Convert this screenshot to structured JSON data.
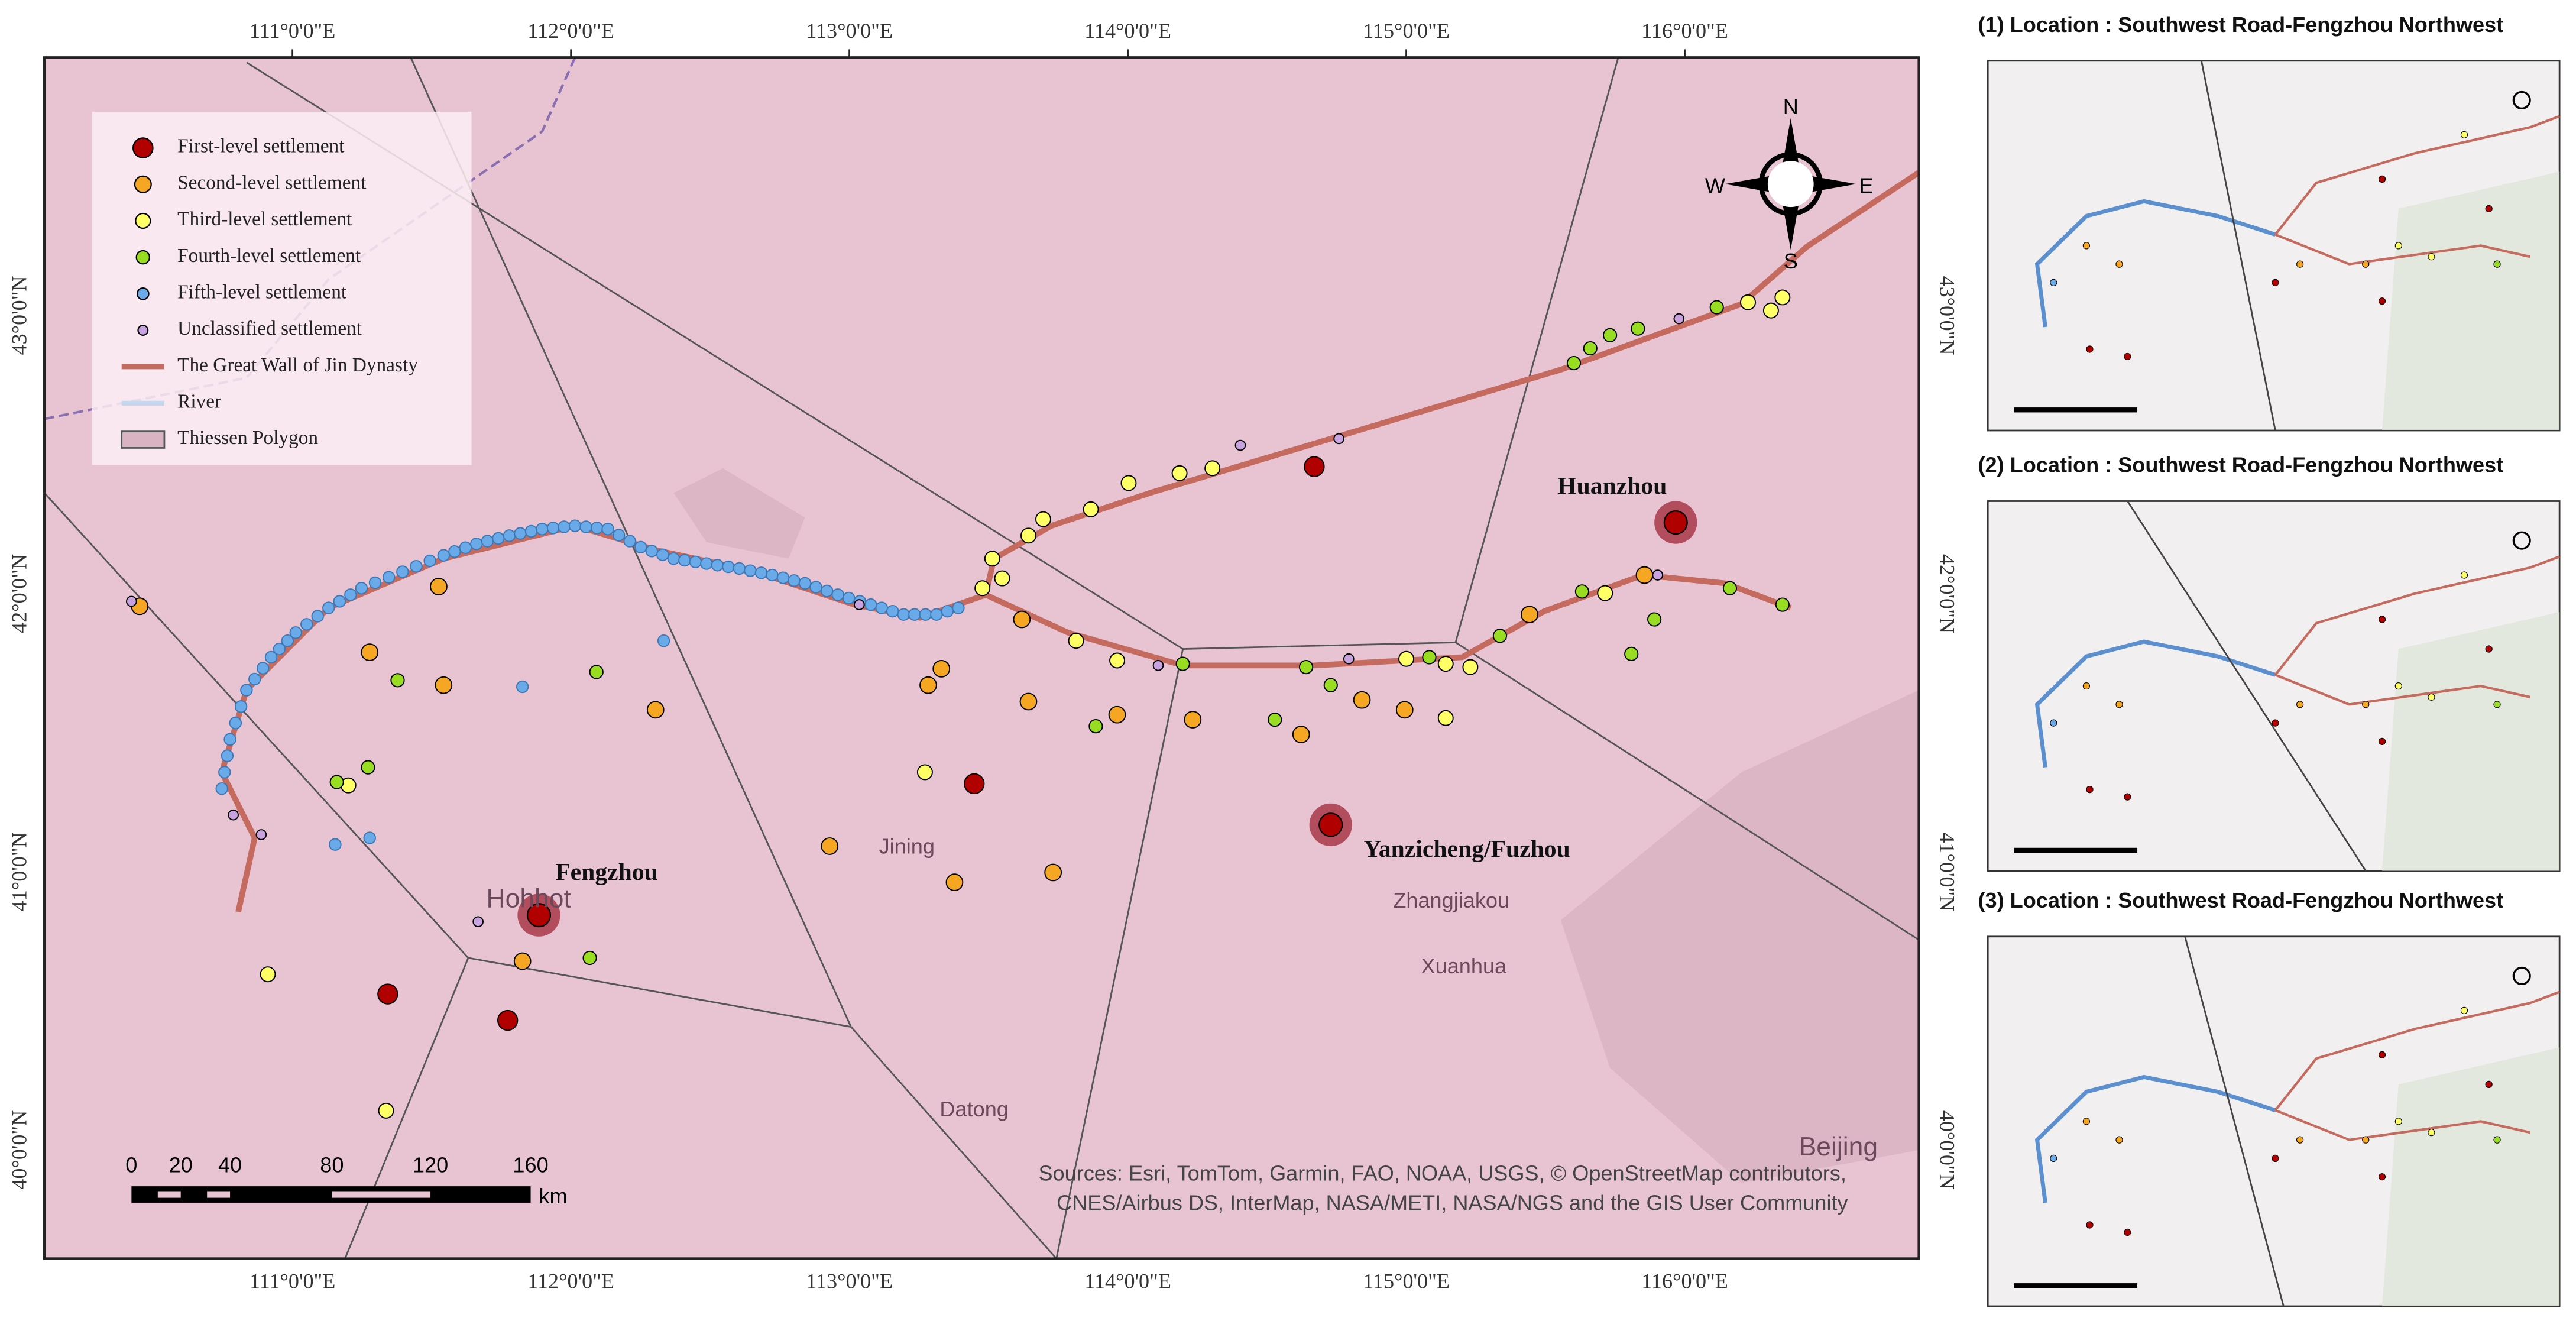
{
  "map": {
    "legend": [
      "First-level settlement",
      "Second-level settlement",
      "Third-level settlement",
      "Fourth-level settlement",
      "Fifth-level settlement",
      "Unclassified settlement",
      "The Great Wall of Jin Dynasty",
      "River",
      "Thiessen Polygon"
    ],
    "compass": {
      "n": "N",
      "e": "E",
      "s": "S",
      "w": "W"
    },
    "lon_labels": [
      "111°0'0\"E",
      "112°0'0\"E",
      "113°0'0\"E",
      "114°0'0\"E",
      "115°0'0\"E",
      "116°0'0\"E"
    ],
    "lat_labels": [
      "43°0'0\"N",
      "42°0'0\"N",
      "41°0'0\"N",
      "40°0'0\"N"
    ],
    "places": [
      "Fengzhou",
      "Huanzhou",
      "Yanzicheng/Fuzhou"
    ],
    "basemap_labels": [
      "Hohhot",
      "Jining",
      "Zhangjiakou",
      "Xuanhua",
      "Datong",
      "Beijing"
    ],
    "scale_bar": {
      "labels": [
        "0",
        "20",
        "40",
        "80",
        "120",
        "160"
      ],
      "unit": "km"
    },
    "sources": [
      "Sources: Esri, TomTom, Garmin, FAO, NOAA, USGS, © OpenStreetMap contributors,",
      "CNES/Airbus DS, InterMap, NASA/METI, NASA/NGS and the GIS User Community"
    ]
  },
  "panels": [
    {
      "title": "(1) Location : Southwest Road-Fengzhou Northwest"
    },
    {
      "title": "(2) Location : Southwest Road-Fengzhou Northwest"
    },
    {
      "title": "(3) Location : Southwest Road-Fengzhou Northwest"
    }
  ]
}
